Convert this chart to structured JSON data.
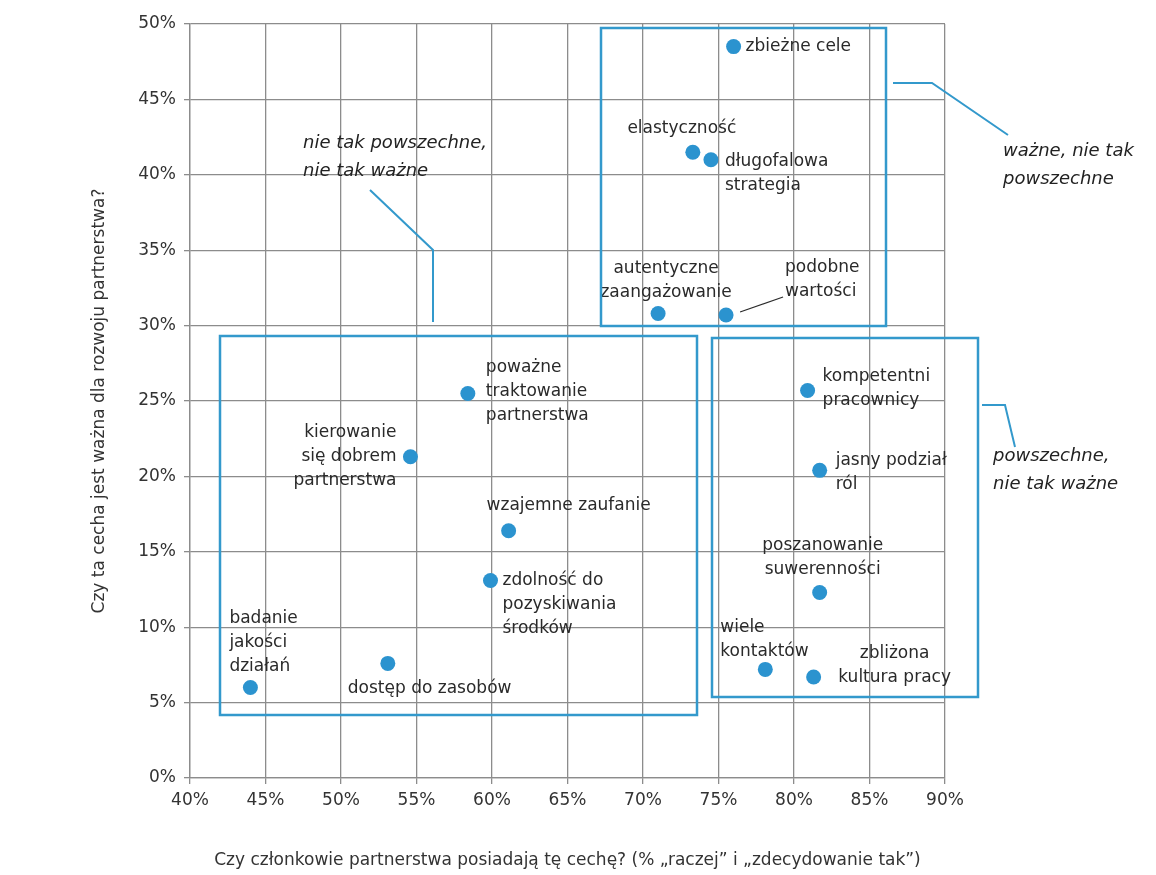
{
  "chart_data": {
    "type": "scatter",
    "xlabel": "Czy członkowie partnerstwa posiadają tę cechę? (% „raczej” i „zdecydowanie tak”)",
    "ylabel": "Czy ta cecha jest ważna dla rozwoju partnerstwa?",
    "annotations": [
      "nie tak powszechne, nie tak ważne",
      "ważne, nie tak powszechne",
      "powszechne, nie tak ważne"
    ],
    "series": [
      {
        "name": "zbieżne cele",
        "color": "#2b93cf",
        "x": [
          76
        ],
        "values": [
          48.5
        ]
      },
      {
        "name": "elastyczność",
        "color": "#2b93cf",
        "x": [
          73.3
        ],
        "values": [
          41.5
        ]
      },
      {
        "name": "długofalowa strategia",
        "color": "#2b93cf",
        "x": [
          74.5
        ],
        "values": [
          41
        ]
      },
      {
        "name": "autentyczne zaangażowanie",
        "color": "#2b93cf",
        "x": [
          71
        ],
        "values": [
          30.8
        ]
      },
      {
        "name": "podobne wartości",
        "color": "#2b93cf",
        "x": [
          75.5
        ],
        "values": [
          30.7
        ]
      },
      {
        "name": "poważne traktowanie partnerstwa",
        "color": "#2b93cf",
        "x": [
          58.4
        ],
        "values": [
          25.5
        ]
      },
      {
        "name": "kierowanie się dobrem partnerstwa",
        "color": "#2b93cf",
        "x": [
          54.6
        ],
        "values": [
          21.3
        ]
      },
      {
        "name": "wzajemne zaufanie",
        "color": "#2b93cf",
        "x": [
          61.1
        ],
        "values": [
          16.4
        ]
      },
      {
        "name": "zdolność do pozyskiwania środków",
        "color": "#2b93cf",
        "x": [
          59.9
        ],
        "values": [
          13.1
        ]
      },
      {
        "name": "badanie jakości działań",
        "color": "#2b93cf",
        "x": [
          44
        ],
        "values": [
          6
        ]
      },
      {
        "name": "dostęp do zasobów",
        "color": "#2b93cf",
        "x": [
          53.1
        ],
        "values": [
          7.6
        ]
      },
      {
        "name": "kompetentni pracownicy",
        "color": "#2b93cf",
        "x": [
          80.9
        ],
        "values": [
          25.7
        ]
      },
      {
        "name": "jasny podział ról",
        "color": "#2b93cf",
        "x": [
          81.7
        ],
        "values": [
          20.4
        ]
      },
      {
        "name": "poszanowanie suwerenności",
        "color": "#2b93cf",
        "x": [
          81.7
        ],
        "values": [
          12.3
        ]
      },
      {
        "name": "wiele kontaktów",
        "color": "#2b93cf",
        "x": [
          78.1
        ],
        "values": [
          7.2
        ]
      },
      {
        "name": "zbliżona kultura pracy",
        "color": "#2b93cf",
        "x": [
          81.3
        ],
        "values": [
          6.7
        ]
      }
    ],
    "xlim": [
      40,
      90
    ],
    "xticks": [
      {
        "value": 40,
        "label": "40%"
      },
      {
        "value": 45,
        "label": "45%"
      },
      {
        "value": 50,
        "label": "50%"
      },
      {
        "value": 55,
        "label": "55%"
      },
      {
        "value": 60,
        "label": "60%"
      },
      {
        "value": 65,
        "label": "65%"
      },
      {
        "value": 70,
        "label": "70%"
      },
      {
        "value": 75,
        "label": "75%"
      },
      {
        "value": 80,
        "label": "80%"
      },
      {
        "value": 85,
        "label": "85%"
      },
      {
        "value": 90,
        "label": "90%"
      }
    ],
    "ylim": [
      0,
      50
    ],
    "yticks": [
      {
        "value": 0,
        "label": "0%"
      },
      {
        "value": 5,
        "label": "5%"
      },
      {
        "value": 10,
        "label": "10%"
      },
      {
        "value": 15,
        "label": "15%"
      },
      {
        "value": 20,
        "label": "20%"
      },
      {
        "value": 25,
        "label": "25%"
      },
      {
        "value": 30,
        "label": "30%"
      },
      {
        "value": 35,
        "label": "35%"
      },
      {
        "value": 40,
        "label": "40%"
      },
      {
        "value": 45,
        "label": "45%"
      },
      {
        "value": 50,
        "label": "50%"
      }
    ],
    "grid": true,
    "marker": "circle"
  }
}
